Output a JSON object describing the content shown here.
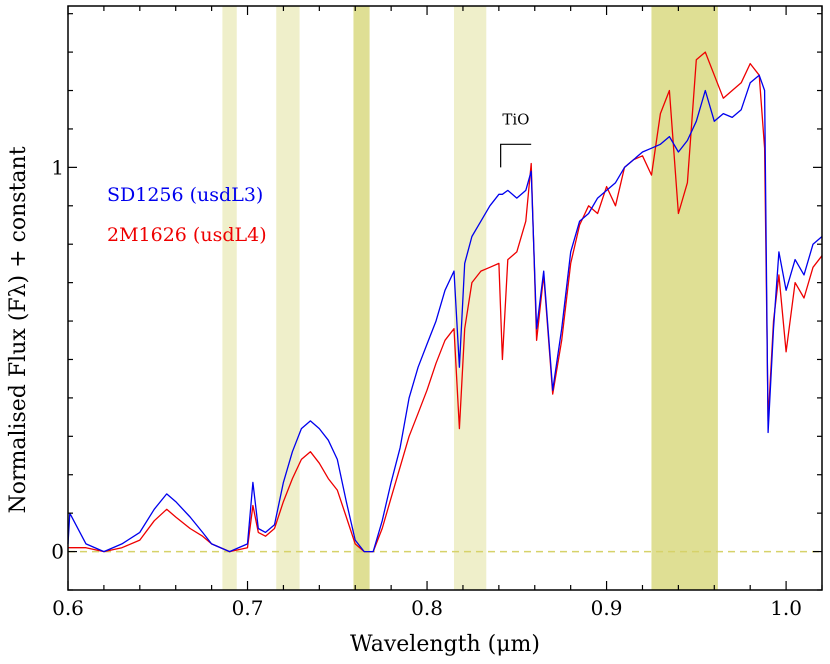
{
  "chart_data": {
    "type": "line",
    "title": "",
    "xlabel": "Wavelength (μm)",
    "ylabel": "Normalised Flux (Fλ) + constant",
    "xlim": [
      0.6,
      1.02
    ],
    "ylim": [
      -0.1,
      1.42
    ],
    "x_ticks": [
      0.6,
      0.7,
      0.8,
      0.9,
      1.0
    ],
    "x_tick_labels": [
      "0.6",
      "0.7",
      "0.8",
      "0.9",
      "1.0"
    ],
    "y_ticks": [
      0,
      1
    ],
    "y_tick_labels": [
      "0",
      "1"
    ],
    "zero_line": {
      "y": 0,
      "color": "#d6d26a",
      "style": "dashed"
    },
    "bands": [
      {
        "x0": 0.686,
        "x1": 0.694,
        "shade": "light"
      },
      {
        "x0": 0.716,
        "x1": 0.729,
        "shade": "light"
      },
      {
        "x0": 0.759,
        "x1": 0.768,
        "shade": "dark"
      },
      {
        "x0": 0.815,
        "x1": 0.833,
        "shade": "light"
      },
      {
        "x0": 0.925,
        "x1": 0.962,
        "shade": "dark"
      }
    ],
    "band_colors": {
      "light": "#efefca",
      "dark": "#dfdf94"
    },
    "annotation": {
      "label": "TiO",
      "x0": 0.841,
      "x1": 0.858,
      "y_top": 1.06,
      "y_bottom": 1.0
    },
    "legend": {
      "placement": "left-middle",
      "entries": [
        {
          "name": "SD1256 (usdL3)",
          "color": "#0000ee"
        },
        {
          "name": "2M1626 (usdL4)",
          "color": "#ee0000"
        }
      ]
    },
    "series": [
      {
        "name": "2M1626 (usdL4)",
        "color": "#ee0000",
        "x": [
          0.6,
          0.61,
          0.62,
          0.63,
          0.64,
          0.648,
          0.655,
          0.66,
          0.668,
          0.675,
          0.68,
          0.69,
          0.7,
          0.703,
          0.706,
          0.71,
          0.715,
          0.72,
          0.725,
          0.73,
          0.735,
          0.74,
          0.745,
          0.75,
          0.755,
          0.76,
          0.765,
          0.77,
          0.775,
          0.78,
          0.785,
          0.79,
          0.795,
          0.8,
          0.805,
          0.81,
          0.815,
          0.818,
          0.821,
          0.825,
          0.83,
          0.835,
          0.84,
          0.842,
          0.845,
          0.85,
          0.855,
          0.858,
          0.861,
          0.865,
          0.87,
          0.875,
          0.88,
          0.885,
          0.89,
          0.895,
          0.9,
          0.905,
          0.91,
          0.915,
          0.92,
          0.925,
          0.93,
          0.935,
          0.94,
          0.945,
          0.95,
          0.955,
          0.96,
          0.965,
          0.97,
          0.975,
          0.98,
          0.985,
          0.988,
          0.99,
          0.993,
          0.996,
          1.0,
          1.005,
          1.01,
          1.015,
          1.02
        ],
        "y": [
          0.01,
          0.01,
          0.0,
          0.01,
          0.03,
          0.08,
          0.11,
          0.09,
          0.06,
          0.04,
          0.02,
          0.0,
          0.01,
          0.12,
          0.05,
          0.04,
          0.06,
          0.13,
          0.19,
          0.24,
          0.26,
          0.23,
          0.19,
          0.16,
          0.09,
          0.02,
          0.0,
          0.0,
          0.06,
          0.14,
          0.22,
          0.3,
          0.36,
          0.42,
          0.49,
          0.55,
          0.58,
          0.32,
          0.58,
          0.7,
          0.73,
          0.74,
          0.75,
          0.5,
          0.76,
          0.78,
          0.86,
          1.01,
          0.55,
          0.72,
          0.41,
          0.55,
          0.75,
          0.85,
          0.9,
          0.88,
          0.95,
          0.9,
          1.0,
          1.02,
          1.03,
          0.98,
          1.14,
          1.2,
          0.88,
          0.96,
          1.28,
          1.3,
          1.24,
          1.18,
          1.2,
          1.22,
          1.27,
          1.24,
          1.05,
          0.34,
          0.6,
          0.72,
          0.52,
          0.7,
          0.66,
          0.74,
          0.77
        ]
      },
      {
        "name": "SD1256 (usdL3)",
        "color": "#0000ee",
        "x": [
          0.6,
          0.601,
          0.61,
          0.62,
          0.63,
          0.64,
          0.648,
          0.655,
          0.66,
          0.668,
          0.675,
          0.68,
          0.69,
          0.7,
          0.703,
          0.706,
          0.71,
          0.715,
          0.72,
          0.725,
          0.73,
          0.735,
          0.74,
          0.745,
          0.75,
          0.755,
          0.76,
          0.765,
          0.77,
          0.775,
          0.78,
          0.785,
          0.79,
          0.795,
          0.8,
          0.805,
          0.81,
          0.815,
          0.818,
          0.821,
          0.825,
          0.83,
          0.835,
          0.84,
          0.842,
          0.845,
          0.85,
          0.855,
          0.858,
          0.861,
          0.865,
          0.87,
          0.875,
          0.88,
          0.885,
          0.89,
          0.895,
          0.9,
          0.905,
          0.91,
          0.915,
          0.92,
          0.925,
          0.93,
          0.935,
          0.94,
          0.945,
          0.95,
          0.955,
          0.96,
          0.965,
          0.97,
          0.975,
          0.98,
          0.985,
          0.988,
          0.99,
          0.993,
          0.996,
          1.0,
          1.005,
          1.01,
          1.015,
          1.02
        ],
        "y": [
          0.02,
          0.1,
          0.02,
          0.0,
          0.02,
          0.05,
          0.11,
          0.15,
          0.13,
          0.09,
          0.05,
          0.02,
          0.0,
          0.02,
          0.18,
          0.06,
          0.05,
          0.07,
          0.18,
          0.26,
          0.32,
          0.34,
          0.32,
          0.29,
          0.24,
          0.13,
          0.03,
          0.0,
          0.0,
          0.08,
          0.18,
          0.27,
          0.4,
          0.48,
          0.54,
          0.6,
          0.68,
          0.73,
          0.48,
          0.75,
          0.82,
          0.86,
          0.9,
          0.93,
          0.93,
          0.94,
          0.92,
          0.94,
          0.99,
          0.58,
          0.73,
          0.42,
          0.58,
          0.78,
          0.86,
          0.88,
          0.92,
          0.94,
          0.96,
          1.0,
          1.02,
          1.04,
          1.05,
          1.06,
          1.08,
          1.04,
          1.07,
          1.12,
          1.2,
          1.12,
          1.14,
          1.13,
          1.15,
          1.22,
          1.24,
          1.2,
          0.31,
          0.58,
          0.78,
          0.68,
          0.76,
          0.72,
          0.8,
          0.82
        ]
      }
    ]
  }
}
